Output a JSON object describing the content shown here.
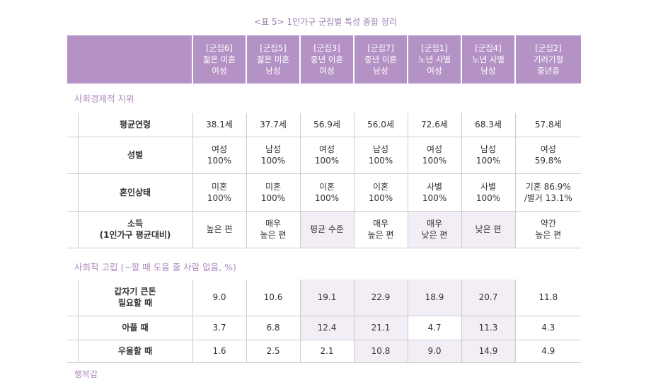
{
  "title": "<표 5> 1인가구 군집별 특성 종합 정리",
  "columns": [
    {
      "l1": "[군집6]",
      "l2": "젊은 미혼",
      "l3": "여성"
    },
    {
      "l1": "[군집5]",
      "l2": "젊은 미혼",
      "l3": "남성"
    },
    {
      "l1": "[군집3]",
      "l2": "중년 이혼",
      "l3": "여성"
    },
    {
      "l1": "[군집7]",
      "l2": "중년 이혼",
      "l3": "남성"
    },
    {
      "l1": "[군집1]",
      "l2": "노년 사별",
      "l3": "여성"
    },
    {
      "l1": "[군집4]",
      "l2": "노년 사별",
      "l3": "남성"
    },
    {
      "l1": "[군집2]",
      "l2": "기러기형",
      "l3": "중년층"
    }
  ],
  "section1": {
    "label": "사회경제적 지위",
    "rows": [
      {
        "label": "평균연령",
        "cells": [
          "38.1세",
          "37.7세",
          "56.9세",
          "56.0세",
          "72.6세",
          "68.3세",
          "57.8세"
        ],
        "hl": []
      },
      {
        "label": "성별",
        "cells": [
          "여성\n100%",
          "남성\n100%",
          "여성\n100%",
          "남성\n100%",
          "여성\n100%",
          "남성\n100%",
          "여성\n59.8%"
        ],
        "hl": []
      },
      {
        "label": "혼인상태",
        "cells": [
          "미혼\n100%",
          "미혼\n100%",
          "이혼\n100%",
          "이혼\n100%",
          "사별\n100%",
          "사별\n100%",
          "기혼 86.9%\n/별거 13.1%"
        ],
        "hl": []
      },
      {
        "label": "소득\n(1인가구 평균대비)",
        "cells": [
          "높은 편",
          "매우\n높은 편",
          "평균 수준",
          "매우\n높은 편",
          "매우\n낮은 편",
          "낮은 편",
          "약간\n높은 편"
        ],
        "hl": [
          2,
          4,
          5
        ]
      }
    ]
  },
  "section2": {
    "label": "사회적 고립 (~할 때 도움 줄 사람 없음, %)",
    "rows": [
      {
        "label": "갑자기 큰돈\n필요할 때",
        "cells": [
          "9.0",
          "10.6",
          "19.1",
          "22.9",
          "18.9",
          "20.7",
          "11.8"
        ],
        "hl": [
          2,
          3,
          4,
          5
        ]
      },
      {
        "label": "아플 때",
        "cells": [
          "3.7",
          "6.8",
          "12.4",
          "21.1",
          "4.7",
          "11.3",
          "4.3"
        ],
        "hl": [
          2,
          3,
          5
        ]
      },
      {
        "label": "우울할 때",
        "cells": [
          "1.6",
          "2.5",
          "2.1",
          "10.8",
          "9.0",
          "14.9",
          "4.9"
        ],
        "hl": [
          3,
          4,
          5
        ]
      }
    ]
  },
  "next_section": "행복감",
  "colors": {
    "header": "#b592c5",
    "highlight": "#f3eef6",
    "section_text": "#b08ac0"
  }
}
